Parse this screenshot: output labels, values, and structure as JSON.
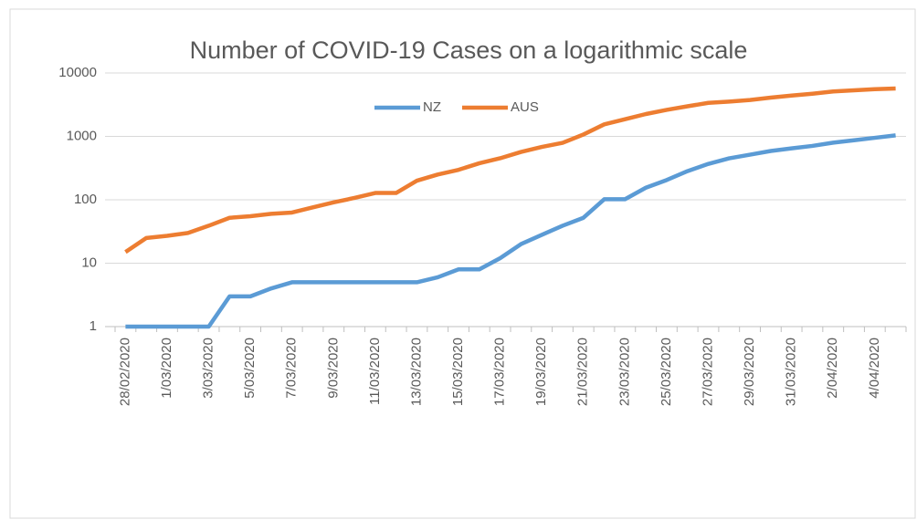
{
  "chart_data": {
    "type": "line",
    "title": "Number of COVID-19 Cases on a logarithmic scale",
    "categories": [
      "28/02/2020",
      null,
      "1/03/2020",
      null,
      "3/03/2020",
      null,
      "5/03/2020",
      null,
      "7/03/2020",
      null,
      "9/03/2020",
      null,
      "11/03/2020",
      null,
      "13/03/2020",
      null,
      "15/03/2020",
      null,
      "17/03/2020",
      null,
      "19/03/2020",
      null,
      "21/03/2020",
      null,
      "23/03/2020",
      null,
      "25/03/2020",
      null,
      "27/03/2020",
      null,
      "29/03/2020",
      null,
      "31/03/2020",
      null,
      "2/04/2020",
      null,
      "4/04/2020",
      null
    ],
    "series": [
      {
        "name": "NZ",
        "color": "#5b9bd5",
        "values": [
          1,
          1,
          1,
          1,
          1,
          3,
          3,
          4,
          5,
          5,
          5,
          5,
          5,
          5,
          5,
          6,
          8,
          8,
          12,
          20,
          28,
          39,
          52,
          102,
          102,
          155,
          205,
          283,
          368,
          451,
          514,
          589,
          647,
          708,
          797,
          868,
          950,
          1039
        ]
      },
      {
        "name": "AUS",
        "color": "#ed7d31",
        "values": [
          15,
          25,
          27,
          30,
          39,
          52,
          55,
          60,
          63,
          76,
          91,
          107,
          128,
          128,
          200,
          250,
          297,
          377,
          452,
          568,
          681,
          791,
          1071,
          1549,
          1865,
          2252,
          2619,
          2982,
          3378,
          3539,
          3751,
          4093,
          4400,
          4707,
          5116,
          5330,
          5550,
          5687
        ]
      }
    ],
    "ylim": [
      1,
      10000
    ],
    "yticks": [
      1,
      10,
      100,
      1000,
      10000
    ],
    "log_scale": true,
    "grid": true,
    "legend": "top"
  }
}
